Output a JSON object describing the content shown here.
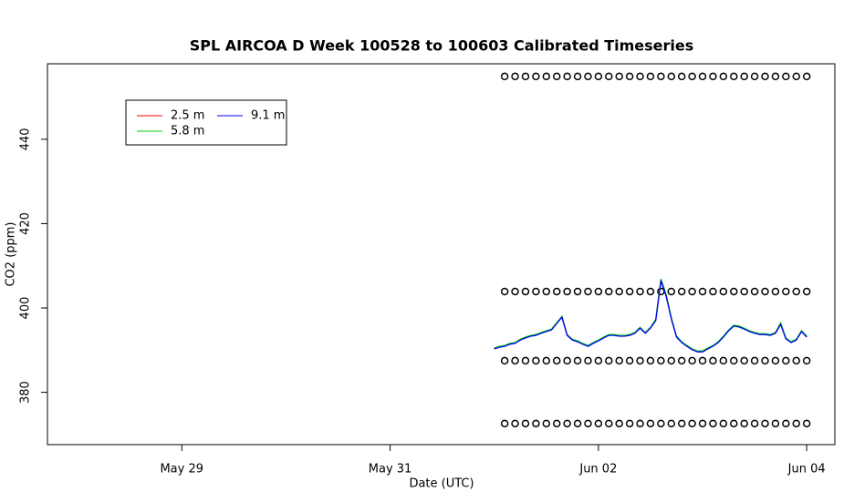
{
  "chart_data": {
    "type": "line",
    "title": "SPL AIRCOA D  Week 100528 to 100603  Calibrated Timeseries",
    "x_label": "Date (UTC)",
    "y_label": "CO2 (ppm)",
    "xlim": [
      27.71,
      35.27
    ],
    "xticks": [
      {
        "value": 29,
        "label": "May 29"
      },
      {
        "value": 31,
        "label": "May 31"
      },
      {
        "value": 33,
        "label": "Jun 02"
      },
      {
        "value": 35,
        "label": "Jun 04"
      }
    ],
    "ylim": [
      367.6,
      457.9
    ],
    "yticks": [
      380,
      400,
      420,
      440
    ],
    "x": [
      32.0,
      32.05,
      32.1,
      32.15,
      32.2,
      32.25,
      32.3,
      32.35,
      32.4,
      32.45,
      32.5,
      32.55,
      32.6,
      32.65,
      32.7,
      32.75,
      32.8,
      32.85,
      32.9,
      32.95,
      33.0,
      33.05,
      33.1,
      33.15,
      33.2,
      33.25,
      33.3,
      33.35,
      33.4,
      33.45,
      33.5,
      33.55,
      33.6,
      33.65,
      33.7,
      33.75,
      33.8,
      33.85,
      33.9,
      33.95,
      34.0,
      34.05,
      34.1,
      34.15,
      34.2,
      34.25,
      34.3,
      34.35,
      34.4,
      34.45,
      34.5,
      34.55,
      34.6,
      34.65,
      34.7,
      34.75,
      34.8,
      34.85,
      34.9,
      34.95,
      35.0
    ],
    "series": [
      {
        "name": "2.5 m",
        "color": "#ff0000",
        "values": [
          390.4,
          390.8,
          391.0,
          391.5,
          391.7,
          392.5,
          393.0,
          393.4,
          393.6,
          394.1,
          394.5,
          394.9,
          396.4,
          397.9,
          393.6,
          392.5,
          392.1,
          391.5,
          391.0,
          391.7,
          392.3,
          393.0,
          393.6,
          393.6,
          393.4,
          393.4,
          393.6,
          394.1,
          395.3,
          394.1,
          395.3,
          397.1,
          406.4,
          402.9,
          397.5,
          393.2,
          391.9,
          391.0,
          390.2,
          389.7,
          389.7,
          390.4,
          391.0,
          391.9,
          393.2,
          394.7,
          395.8,
          395.6,
          395.1,
          394.5,
          394.1,
          393.8,
          393.8,
          393.6,
          394.1,
          396.2,
          392.8,
          391.9,
          392.5,
          394.5,
          393.2
        ]
      },
      {
        "name": "5.8 m",
        "color": "#00cd00",
        "values": [
          390.5,
          390.9,
          391.1,
          391.6,
          391.8,
          392.6,
          393.1,
          393.5,
          393.7,
          394.2,
          394.6,
          395.0,
          396.5,
          398.0,
          393.7,
          392.6,
          392.2,
          391.6,
          391.1,
          391.8,
          392.4,
          393.1,
          393.7,
          393.7,
          393.5,
          393.5,
          393.7,
          394.2,
          395.4,
          394.2,
          395.4,
          397.3,
          406.9,
          403.2,
          397.7,
          393.3,
          392.0,
          391.1,
          390.3,
          389.8,
          389.8,
          390.5,
          391.1,
          392.0,
          393.3,
          394.8,
          395.9,
          395.7,
          395.2,
          394.6,
          394.2,
          393.9,
          393.9,
          393.7,
          394.2,
          396.5,
          392.9,
          392.0,
          392.6,
          394.6,
          393.3
        ]
      },
      {
        "name": "9.1 m",
        "color": "#0000ff",
        "values": [
          390.3,
          390.7,
          390.9,
          391.4,
          391.6,
          392.4,
          392.9,
          393.3,
          393.5,
          394.0,
          394.4,
          394.8,
          396.3,
          397.8,
          393.5,
          392.4,
          392.0,
          391.4,
          390.9,
          391.6,
          392.2,
          392.9,
          393.5,
          393.5,
          393.3,
          393.3,
          393.5,
          394.0,
          395.2,
          394.0,
          395.2,
          397.0,
          406.5,
          402.8,
          397.4,
          393.1,
          391.8,
          390.9,
          390.1,
          389.6,
          389.6,
          390.3,
          390.9,
          391.8,
          393.1,
          394.6,
          395.7,
          395.5,
          395.0,
          394.4,
          394.0,
          393.7,
          393.7,
          393.5,
          394.0,
          396.1,
          392.7,
          391.8,
          392.4,
          394.4,
          393.1
        ]
      }
    ],
    "points": {
      "x": [
        32.1,
        32.2,
        32.3,
        32.4,
        32.5,
        32.6,
        32.7,
        32.8,
        32.9,
        33.0,
        33.1,
        33.2,
        33.3,
        33.4,
        33.5,
        33.6,
        33.7,
        33.8,
        33.9,
        34.0,
        34.1,
        34.2,
        34.3,
        34.4,
        34.5,
        34.6,
        34.7,
        34.8,
        34.9,
        35.0
      ],
      "series": [
        {
          "values": [
            454.9,
            454.9,
            454.9,
            454.9,
            454.9,
            454.9,
            454.9,
            454.9,
            454.9,
            454.9,
            454.9,
            454.9,
            454.9,
            454.9,
            454.9,
            454.9,
            454.9,
            454.9,
            454.9,
            454.9,
            454.9,
            454.9,
            454.9,
            454.9,
            454.9,
            454.9,
            454.9,
            454.9,
            454.9,
            454.9
          ]
        },
        {
          "values": [
            403.9,
            403.9,
            403.9,
            403.9,
            403.9,
            403.9,
            403.9,
            403.9,
            403.9,
            403.9,
            403.9,
            403.9,
            403.9,
            403.9,
            403.9,
            403.9,
            403.9,
            403.9,
            403.9,
            403.9,
            403.9,
            403.9,
            403.9,
            403.9,
            403.9,
            403.9,
            403.9,
            403.9,
            403.9,
            403.9
          ]
        },
        {
          "values": [
            387.5,
            387.5,
            387.5,
            387.5,
            387.5,
            387.5,
            387.5,
            387.5,
            387.5,
            387.5,
            387.5,
            387.5,
            387.5,
            387.5,
            387.5,
            387.5,
            387.5,
            387.5,
            387.5,
            387.5,
            387.5,
            387.5,
            387.5,
            387.5,
            387.5,
            387.5,
            387.5,
            387.5,
            387.5,
            387.5
          ]
        },
        {
          "values": [
            372.6,
            372.6,
            372.6,
            372.6,
            372.6,
            372.6,
            372.6,
            372.6,
            372.6,
            372.6,
            372.6,
            372.6,
            372.6,
            372.6,
            372.6,
            372.6,
            372.6,
            372.6,
            372.6,
            372.6,
            372.6,
            372.6,
            372.6,
            372.6,
            372.6,
            372.6,
            372.6,
            372.6,
            372.6,
            372.6
          ]
        }
      ]
    }
  }
}
